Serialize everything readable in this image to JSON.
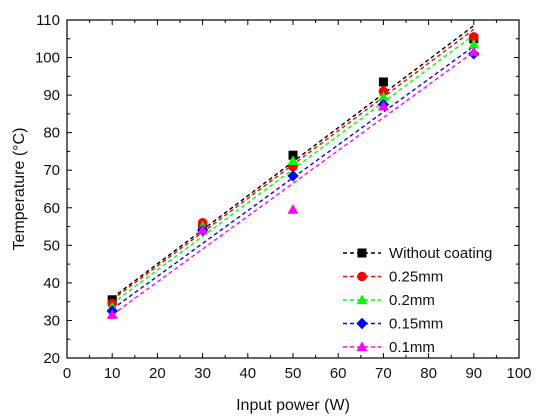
{
  "chart_data": {
    "type": "scatter",
    "xlabel": "Input power (W)",
    "ylabel": "Temperature (°C)",
    "xlim": [
      0,
      100
    ],
    "ylim": [
      20,
      110
    ],
    "xticks": [
      0,
      10,
      20,
      30,
      40,
      50,
      60,
      70,
      80,
      90,
      100
    ],
    "yticks": [
      20,
      30,
      40,
      50,
      60,
      70,
      80,
      90,
      100,
      110
    ],
    "grid": false,
    "legend_position": "lower-right",
    "x": [
      10,
      30,
      50,
      70,
      90
    ],
    "series": [
      {
        "name": "Without coating",
        "color": "#000000",
        "marker": "square",
        "values": [
          35.5,
          55.0,
          74.0,
          93.5,
          105.0
        ],
        "fit": [
          36.0,
          108.5
        ]
      },
      {
        "name": "0.25mm",
        "color": "#ff0000",
        "marker": "circle",
        "values": [
          34.5,
          56.0,
          71.0,
          91.0,
          105.5
        ],
        "fit": [
          35.5,
          107.5
        ]
      },
      {
        "name": "0.2mm",
        "color": "#00ff00",
        "marker": "triangle-up",
        "values": [
          33.5,
          55.0,
          72.5,
          89.5,
          103.5
        ],
        "fit": [
          34.5,
          106.0
        ]
      },
      {
        "name": "0.15mm",
        "color": "#0000ff",
        "marker": "diamond",
        "values": [
          32.5,
          54.0,
          68.5,
          87.5,
          101.0
        ],
        "fit": [
          33.0,
          103.0
        ]
      },
      {
        "name": "0.1mm",
        "color": "#ff00ff",
        "marker": "triangle-up",
        "values": [
          31.5,
          54.0,
          59.5,
          87.0,
          101.5
        ],
        "fit": [
          31.5,
          101.5
        ]
      }
    ]
  }
}
